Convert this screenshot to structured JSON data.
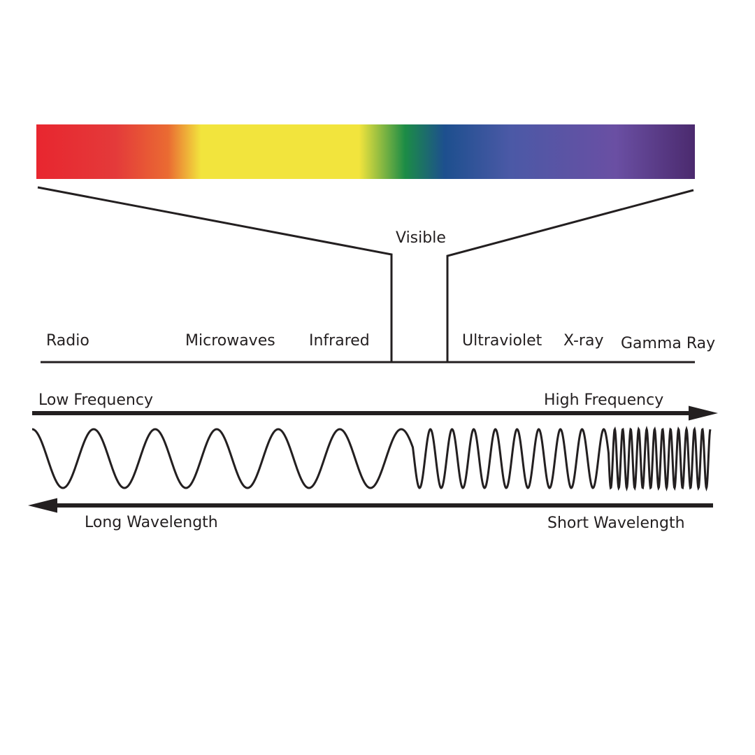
{
  "spectrum": {
    "visible_label": "Visible",
    "bands": [
      {
        "key": "radio",
        "label": "Radio"
      },
      {
        "key": "microwaves",
        "label": "Microwaves"
      },
      {
        "key": "infrared",
        "label": "Infrared"
      },
      {
        "key": "ultraviolet",
        "label": "Ultraviolet"
      },
      {
        "key": "xray",
        "label": "X-ray"
      },
      {
        "key": "gamma",
        "label": "Gamma Ray"
      }
    ],
    "colors": [
      "#e8262f",
      "#e33a3a",
      "#f0c43a",
      "#f2e43d",
      "#f2e43d",
      "#1c8c46",
      "#1d4f8e",
      "#4b59a6",
      "#6a4fa3",
      "#4b2a6e"
    ]
  },
  "frequency": {
    "low_label": "Low Frequency",
    "high_label": "High Frequency"
  },
  "wavelength": {
    "long_label": "Long Wavelength",
    "short_label": "Short Wavelength"
  },
  "colors": {
    "line": "#231f20",
    "background": "#ffffff"
  }
}
